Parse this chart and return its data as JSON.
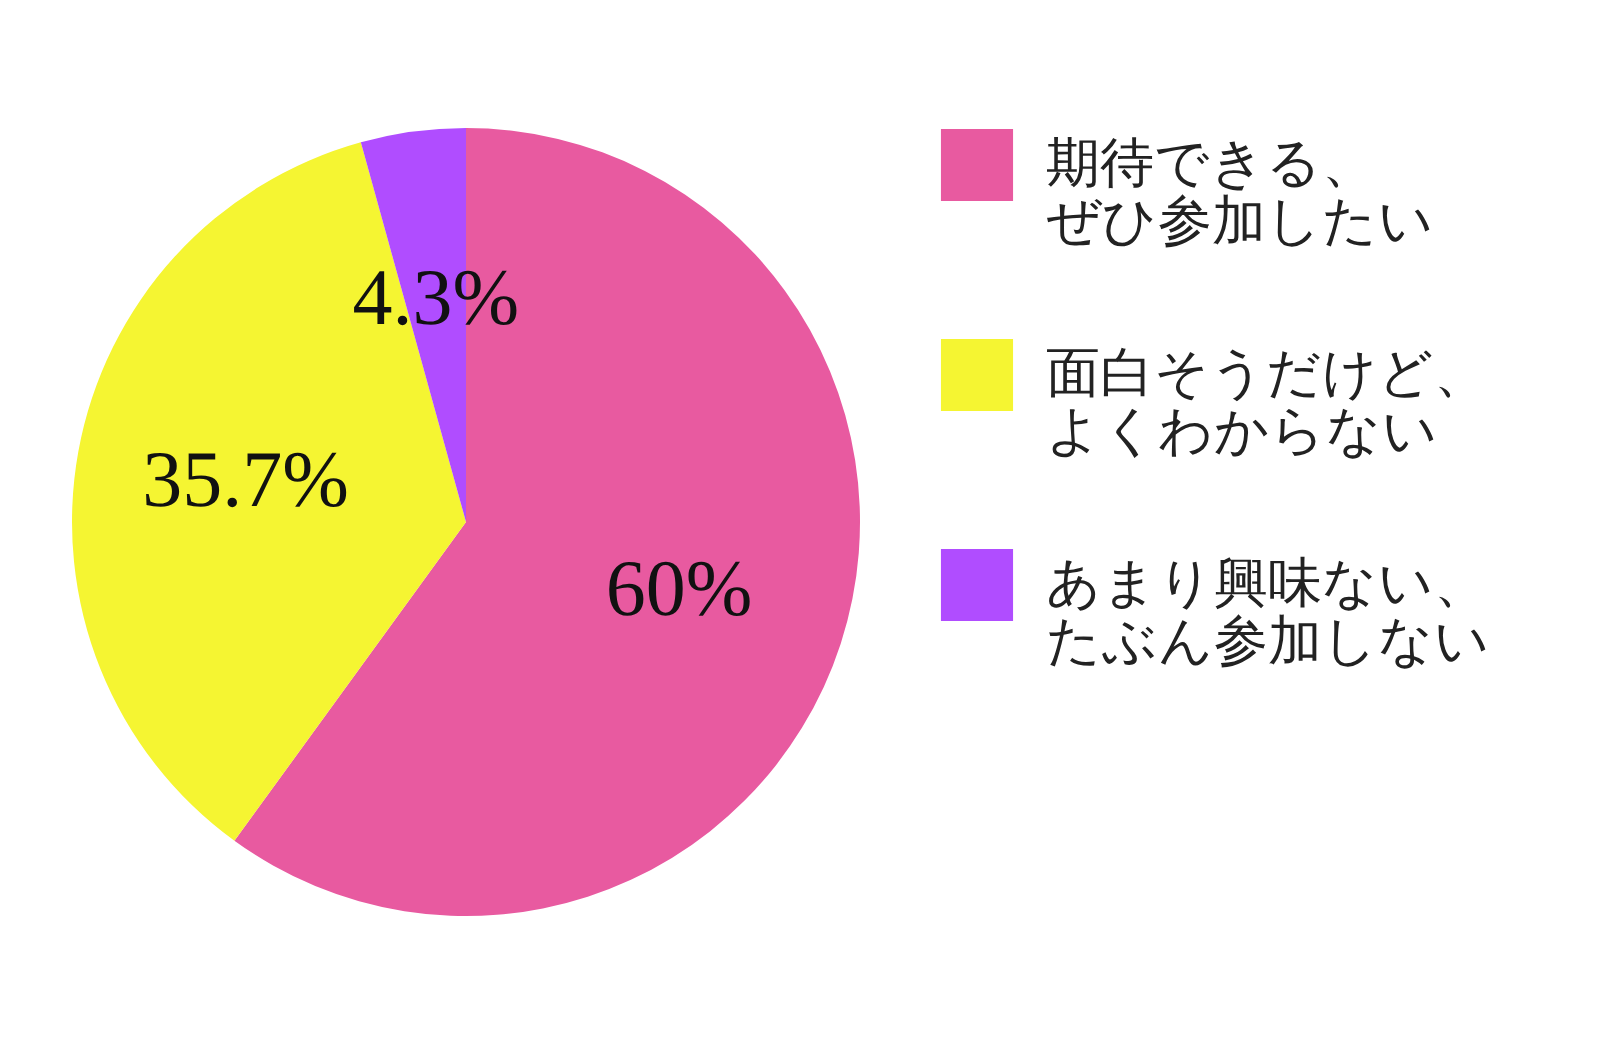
{
  "chart_data": {
    "type": "pie",
    "categories": [
      "期待できる、ぜひ参加したい",
      "面白そうだけど、よくわからない",
      "あまり興味ない、たぶん参加しない"
    ],
    "values": [
      60,
      35.7,
      4.3
    ],
    "colors": [
      "#e85aa0",
      "#f5f532",
      "#b04dff"
    ],
    "value_labels": [
      "60%",
      "35.7%",
      "4.3%"
    ],
    "legend": "right"
  }
}
